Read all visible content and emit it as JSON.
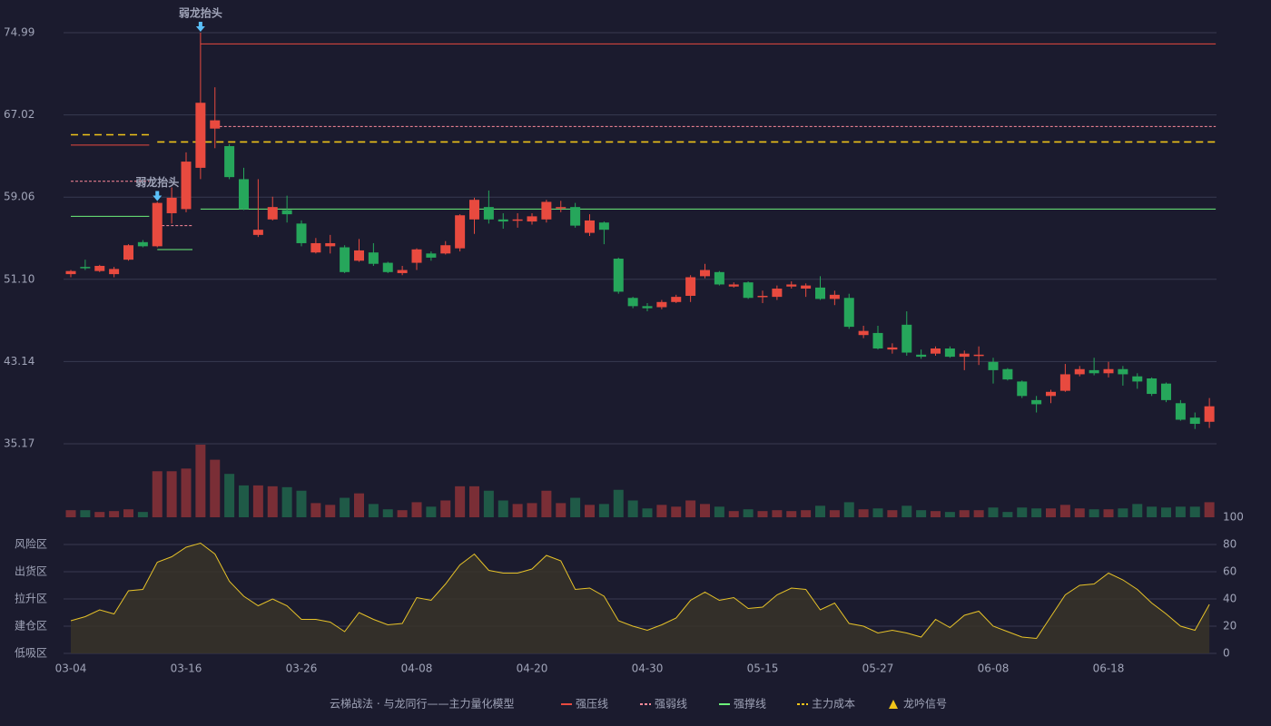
{
  "chart_data": [
    {
      "type": "candlestick",
      "categories": [
        "03-04",
        null,
        null,
        null,
        null,
        null,
        null,
        null,
        "03-16",
        null,
        null,
        null,
        null,
        null,
        null,
        null,
        "03-26",
        null,
        null,
        null,
        null,
        null,
        null,
        null,
        "04-08",
        null,
        null,
        null,
        null,
        null,
        null,
        null,
        "04-20",
        null,
        null,
        null,
        null,
        null,
        null,
        null,
        "04-30",
        null,
        null,
        null,
        null,
        null,
        null,
        null,
        "05-15",
        null,
        null,
        null,
        null,
        null,
        null,
        null,
        "05-27",
        null,
        null,
        null,
        null,
        null,
        null,
        null,
        "06-08",
        null,
        null,
        null,
        null,
        null,
        null,
        null,
        "06-18",
        null,
        null,
        null,
        null,
        null,
        null,
        null
      ],
      "open": [
        51.6,
        52.3,
        51.9,
        51.6,
        53.0,
        54.7,
        54.3,
        57.5,
        57.9,
        61.9,
        65.7,
        64.0,
        60.8,
        55.4,
        56.9,
        57.8,
        56.5,
        53.7,
        54.3,
        54.2,
        52.9,
        53.7,
        52.7,
        51.7,
        52.7,
        53.6,
        53.6,
        54.1,
        56.9,
        58.1,
        56.9,
        56.8,
        56.7,
        56.9,
        58.0,
        58.1,
        55.6,
        56.6,
        53.1,
        49.3,
        48.5,
        48.4,
        48.9,
        49.5,
        51.4,
        51.8,
        50.4,
        50.8,
        49.4,
        49.4,
        50.4,
        50.2,
        50.3,
        49.2,
        49.3,
        45.7,
        45.9,
        44.3,
        46.7,
        43.8,
        43.9,
        44.4,
        43.6,
        43.7,
        43.1,
        42.4,
        41.2,
        39.4,
        39.8,
        40.3,
        41.9,
        42.3,
        42.0,
        42.4,
        41.7,
        41.5,
        41.0,
        39.1,
        37.7,
        37.3
      ],
      "high": [
        52.0,
        53.0,
        52.5,
        52.3,
        54.5,
        54.9,
        58.6,
        60.0,
        63.4,
        74.99,
        69.7,
        64.2,
        61.9,
        60.8,
        59.1,
        59.2,
        56.8,
        55.1,
        55.4,
        54.4,
        55.0,
        54.6,
        52.8,
        52.4,
        54.1,
        53.8,
        54.8,
        57.4,
        59.0,
        59.7,
        57.5,
        57.5,
        57.5,
        58.8,
        58.7,
        58.5,
        57.4,
        56.7,
        53.2,
        49.4,
        48.8,
        49.1,
        49.6,
        51.5,
        52.6,
        51.9,
        50.8,
        50.9,
        50.0,
        50.5,
        50.9,
        50.7,
        51.4,
        50.0,
        49.7,
        46.6,
        46.6,
        44.9,
        48.0,
        44.3,
        44.6,
        44.6,
        44.2,
        44.6,
        43.5,
        42.5,
        41.3,
        39.8,
        40.4,
        42.9,
        42.7,
        43.5,
        43.1,
        42.7,
        42.0,
        41.6,
        41.1,
        39.4,
        38.2,
        39.6
      ],
      "low": [
        51.3,
        52.0,
        51.8,
        51.3,
        52.9,
        54.2,
        54.2,
        56.5,
        57.6,
        60.8,
        63.8,
        60.8,
        57.8,
        55.2,
        56.8,
        56.6,
        54.3,
        53.6,
        53.6,
        51.7,
        52.8,
        52.4,
        51.7,
        51.5,
        52.0,
        52.9,
        53.5,
        53.8,
        55.5,
        56.5,
        56.0,
        56.1,
        56.4,
        56.6,
        57.6,
        56.1,
        55.3,
        54.5,
        49.7,
        48.3,
        48.0,
        48.2,
        48.8,
        48.9,
        51.2,
        50.5,
        50.3,
        49.2,
        48.8,
        49.1,
        50.2,
        49.4,
        49.1,
        48.6,
        46.3,
        45.4,
        44.3,
        43.9,
        43.7,
        43.4,
        43.7,
        43.5,
        42.3,
        42.8,
        41.0,
        41.3,
        39.6,
        38.2,
        39.1,
        40.2,
        41.7,
        41.8,
        41.6,
        40.8,
        40.5,
        39.8,
        39.2,
        37.4,
        36.6,
        36.7
      ],
      "close": [
        51.9,
        52.2,
        52.4,
        52.1,
        54.4,
        54.3,
        58.5,
        59.0,
        62.5,
        68.2,
        66.5,
        61.0,
        57.9,
        55.9,
        58.1,
        57.4,
        54.6,
        54.6,
        54.6,
        51.8,
        53.9,
        52.6,
        51.8,
        52.0,
        54.0,
        53.2,
        54.4,
        57.3,
        58.8,
        56.9,
        56.7,
        56.9,
        57.2,
        58.6,
        58.1,
        56.3,
        56.8,
        55.9,
        49.9,
        48.5,
        48.3,
        48.9,
        49.4,
        51.3,
        52.0,
        50.6,
        50.6,
        49.3,
        49.5,
        50.2,
        50.6,
        50.5,
        49.2,
        49.6,
        46.5,
        46.1,
        44.4,
        44.5,
        44.0,
        43.6,
        44.4,
        43.6,
        43.9,
        43.8,
        42.3,
        41.4,
        39.8,
        39.0,
        40.2,
        41.9,
        42.4,
        42.0,
        42.4,
        41.9,
        41.2,
        40.0,
        39.4,
        37.5,
        37.1,
        38.8
      ],
      "up_color": "#e84a3f",
      "down_color": "#26a65b",
      "ylim": [
        35.17,
        74.99
      ],
      "yticks": [
        74.99,
        67.02,
        59.06,
        {
          "value": 51.1,
          "label": "51.10"
        },
        43.14,
        35.17
      ],
      "grid": true,
      "lines": [
        {
          "name": "强压线",
          "color": "#e84a3f",
          "dash": false,
          "segments": [
            {
              "start": 0,
              "end": 5,
              "value": 64.1
            },
            {
              "start": 9,
              "end": 79,
              "value": 73.9
            }
          ]
        },
        {
          "name": "强弱线",
          "color": "#ff8a9a",
          "dash": true,
          "segments": [
            {
              "start": 0,
              "end": 5,
              "value": 60.6
            },
            {
              "start": 6,
              "end": 8,
              "value": 56.3
            },
            {
              "start": 10,
              "end": 79,
              "value": 65.9
            }
          ]
        },
        {
          "name": "强撑线",
          "color": "#6cf07a",
          "dash": false,
          "segments": [
            {
              "start": 0,
              "end": 5,
              "value": 57.2
            },
            {
              "start": 6,
              "end": 8,
              "value": 53.98
            },
            {
              "start": 9,
              "end": 79,
              "value": 57.9
            }
          ]
        },
        {
          "name": "主力成本",
          "color": "#f0c419",
          "dash": true,
          "segments": [
            {
              "start": 0,
              "end": 5,
              "value": 65.1
            },
            {
              "start": 6,
              "end": 79,
              "value": 64.4
            }
          ]
        }
      ],
      "annotations": [
        {
          "index": 6,
          "label": "弱龙抬头"
        },
        {
          "index": 9,
          "label": "弱龙抬头"
        }
      ],
      "legend_title": "云梯战法 · 与龙同行——主力量化模型",
      "signal": "龙吟信号",
      "signal_color": "#f0c419"
    },
    {
      "type": "bar",
      "values": [
        8,
        8,
        6,
        7,
        9,
        6,
        52,
        52,
        55,
        82,
        65,
        49,
        36,
        36,
        35,
        34,
        30,
        16,
        14,
        22,
        27,
        15,
        9,
        8,
        17,
        12,
        19,
        35,
        35,
        30,
        19,
        15,
        16,
        30,
        16,
        22,
        14,
        15,
        31,
        19,
        10,
        14,
        12,
        19,
        15,
        12,
        7,
        9,
        7,
        8,
        7,
        8,
        13,
        8,
        17,
        9,
        10,
        8,
        13,
        8,
        7,
        6,
        8,
        8,
        11,
        6,
        11,
        10,
        10,
        14,
        10,
        9,
        9,
        10,
        15,
        12,
        11,
        12,
        12,
        17
      ],
      "ylim": [
        0,
        82
      ],
      "up_color": "#7a2e36",
      "down_color": "#1f5a47"
    },
    {
      "type": "area",
      "values": [
        24,
        27,
        32,
        29,
        46,
        47,
        67,
        71,
        78,
        81,
        73,
        53,
        42,
        35,
        40,
        35,
        25,
        25,
        23,
        16,
        30,
        25,
        21,
        22,
        41,
        39,
        51,
        65,
        73,
        61,
        59,
        59,
        62,
        72,
        68,
        47,
        48,
        42,
        24,
        20,
        17,
        21,
        26,
        39,
        45,
        39,
        41,
        33,
        34,
        43,
        48,
        47,
        32,
        37,
        22,
        20,
        15,
        17,
        15,
        12,
        25,
        19,
        28,
        31,
        20,
        16,
        12,
        11,
        27,
        43,
        50,
        51,
        59,
        54,
        47,
        37,
        29,
        20,
        17,
        36
      ],
      "color": "#e6c229",
      "ylim": [
        0,
        100
      ],
      "yticks": [
        0,
        20,
        40,
        60,
        80,
        100
      ],
      "ytick_colors": [
        "#ff4a4a",
        "#ff9a3c",
        "#4aa8ff",
        "#ff44ff",
        "#ff9a3c",
        "#4cff4c"
      ],
      "zones": [
        {
          "value": 80,
          "label": "风险区",
          "color": "#ff9a3c"
        },
        {
          "value": 60,
          "label": "出货区",
          "color": "#ff44ff"
        },
        {
          "value": 40,
          "label": "拉升区",
          "color": "#4aa8ff"
        },
        {
          "value": 20,
          "label": "建仓区",
          "color": "#ff6a4a"
        },
        {
          "value": 0,
          "label": "低吸区",
          "color": "#ff4a4a"
        }
      ]
    }
  ]
}
